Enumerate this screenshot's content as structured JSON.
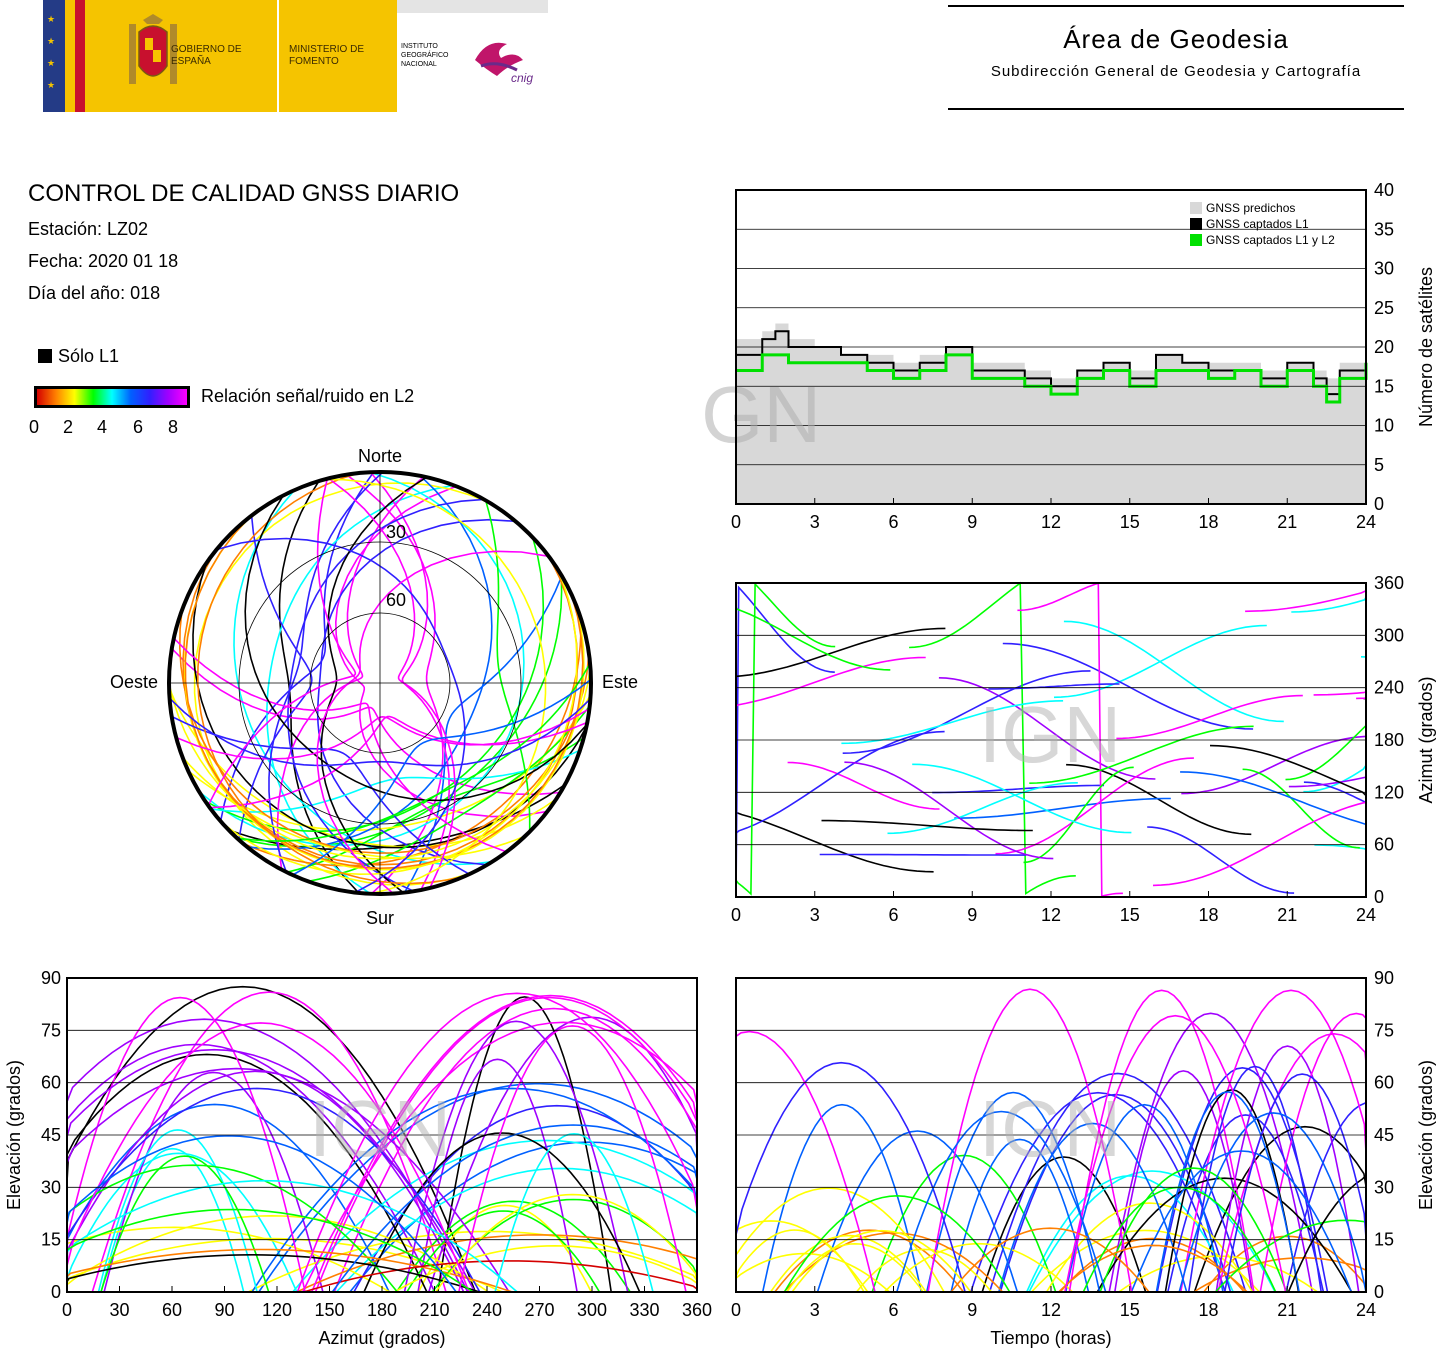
{
  "header": {
    "logos": {
      "gobierno": "GOBIERNO DE ESPAÑA",
      "ministerio": "MINISTERIO DE FOMENTO",
      "instituto": "INSTITUTO GEOGRÁFICO NACIONAL",
      "cnig": "cnig"
    },
    "area_title": "Área de Geodesia",
    "area_subtitle": "Subdirección General de Geodesia y Cartografía"
  },
  "report": {
    "title": "CONTROL DE CALIDAD GNSS DIARIO",
    "station": "Estación: LZ02",
    "date": "Fecha: 2020 01 18",
    "doy": "Día del año: 018"
  },
  "legend": {
    "l1_only": "Sólo L1",
    "snr_label": "Relación señal/ruido en L2",
    "snr_ticks": [
      "0",
      "2",
      "4",
      "6",
      "8"
    ]
  },
  "skyplot": {
    "north": "Norte",
    "south": "Sur",
    "west": "Oeste",
    "east": "Este",
    "ring_30": "30",
    "ring_60": "60"
  },
  "watermark": "IGN",
  "colors": {
    "predicted": "#d8d8d8",
    "l1": "#000000",
    "l1l2": "#00e000",
    "snr_scale": [
      "#d40000",
      "#ff7f00",
      "#ffff00",
      "#00ff00",
      "#00ffff",
      "#0060ff",
      "#3020ff",
      "#a000ff",
      "#ff00ff"
    ]
  },
  "chart_data": [
    {
      "type": "area",
      "id": "satellite-count",
      "ylabel": "Número de satélites",
      "xlim": [
        0,
        24
      ],
      "ylim": [
        0,
        40
      ],
      "xticks": [
        "0",
        "3",
        "6",
        "9",
        "12",
        "15",
        "18",
        "21",
        "24"
      ],
      "yticks": [
        "0",
        "5",
        "10",
        "15",
        "20",
        "25",
        "30",
        "35",
        "40"
      ],
      "grid": true,
      "legend_position": "top-right",
      "legend": [
        "GNSS predichos",
        "GNSS captados L1",
        "GNSS captados L1 y L2"
      ],
      "x": [
        0,
        1,
        1.5,
        2,
        3,
        4,
        5,
        6,
        7,
        8,
        9,
        10,
        11,
        12,
        13,
        14,
        15,
        16,
        17,
        18,
        19,
        20,
        21,
        22,
        22.5,
        23,
        24
      ],
      "series": [
        {
          "name": "GNSS predichos",
          "values": [
            21,
            22,
            23,
            21,
            20,
            19,
            19,
            18,
            19,
            20,
            18,
            18,
            17,
            16,
            17,
            18,
            17,
            19,
            18,
            18,
            18,
            17,
            18,
            17,
            16,
            18,
            20
          ]
        },
        {
          "name": "GNSS captados L1",
          "values": [
            19,
            21,
            22,
            20,
            20,
            19,
            18,
            17,
            18,
            20,
            17,
            17,
            16,
            15,
            17,
            18,
            16,
            19,
            18,
            17,
            17,
            16,
            18,
            16,
            14,
            17,
            19
          ]
        },
        {
          "name": "GNSS captados L1 y L2",
          "values": [
            17,
            19,
            19,
            18,
            18,
            18,
            17,
            16,
            17,
            19,
            16,
            16,
            15,
            14,
            16,
            17,
            15,
            17,
            17,
            16,
            17,
            15,
            17,
            15,
            13,
            16,
            18
          ]
        }
      ]
    },
    {
      "type": "scatter",
      "id": "azimuth-vs-time",
      "ylabel": "Azimut (grados)",
      "xlim": [
        0,
        24
      ],
      "ylim": [
        0,
        360
      ],
      "xticks": [
        "0",
        "3",
        "6",
        "9",
        "12",
        "15",
        "18",
        "21",
        "24"
      ],
      "yticks": [
        "0",
        "60",
        "120",
        "180",
        "240",
        "300",
        "360"
      ],
      "grid": true
    },
    {
      "type": "scatter",
      "id": "elevation-vs-azimuth",
      "xlabel": "Azimut (grados)",
      "ylabel": "Elevación (grados)",
      "xlim": [
        0,
        360
      ],
      "ylim": [
        0,
        90
      ],
      "xticks": [
        "0",
        "30",
        "60",
        "90",
        "120",
        "150",
        "180",
        "210",
        "240",
        "270",
        "300",
        "330",
        "360"
      ],
      "yticks": [
        "0",
        "15",
        "30",
        "45",
        "60",
        "75",
        "90"
      ],
      "grid": true
    },
    {
      "type": "scatter",
      "id": "elevation-vs-time",
      "xlabel": "Tiempo (horas)",
      "ylabel": "Elevación (grados)",
      "xlim": [
        0,
        24
      ],
      "ylim": [
        0,
        90
      ],
      "xticks": [
        "0",
        "3",
        "6",
        "9",
        "12",
        "15",
        "18",
        "21",
        "24"
      ],
      "yticks": [
        "0",
        "15",
        "30",
        "45",
        "60",
        "75",
        "90"
      ],
      "grid": true
    }
  ]
}
